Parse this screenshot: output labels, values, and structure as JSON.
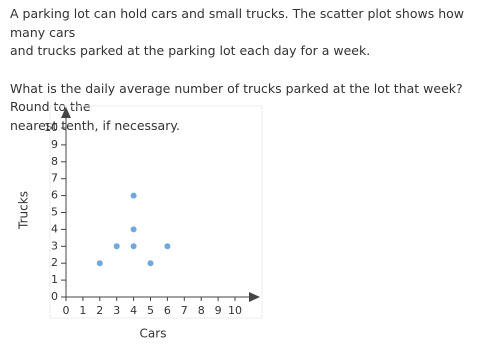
{
  "question": {
    "intro_lines": [
      "A parking lot can hold cars and small trucks. The scatter plot shows how many cars",
      "and trucks parked at the parking lot each day for a week."
    ],
    "prompt_lines": [
      "What is the daily average number of trucks parked at the lot that week? Round to the",
      "nearest tenth, if necessary."
    ]
  },
  "chart_data": {
    "type": "scatter",
    "x_label": "Cars",
    "y_label": "Trucks",
    "x": [
      2,
      3,
      4,
      4,
      4,
      5,
      6
    ],
    "values": [
      2,
      3,
      6,
      4,
      3,
      2,
      3
    ],
    "color": "#6fa8dc",
    "xlim": [
      0,
      10
    ],
    "ylim": [
      0,
      10
    ],
    "xticks": [
      0,
      1,
      2,
      3,
      4,
      5,
      6,
      7,
      8,
      9,
      10
    ],
    "yticks": [
      0,
      1,
      2,
      3,
      4,
      5,
      6,
      7,
      8,
      9,
      10
    ],
    "grid": false
  }
}
